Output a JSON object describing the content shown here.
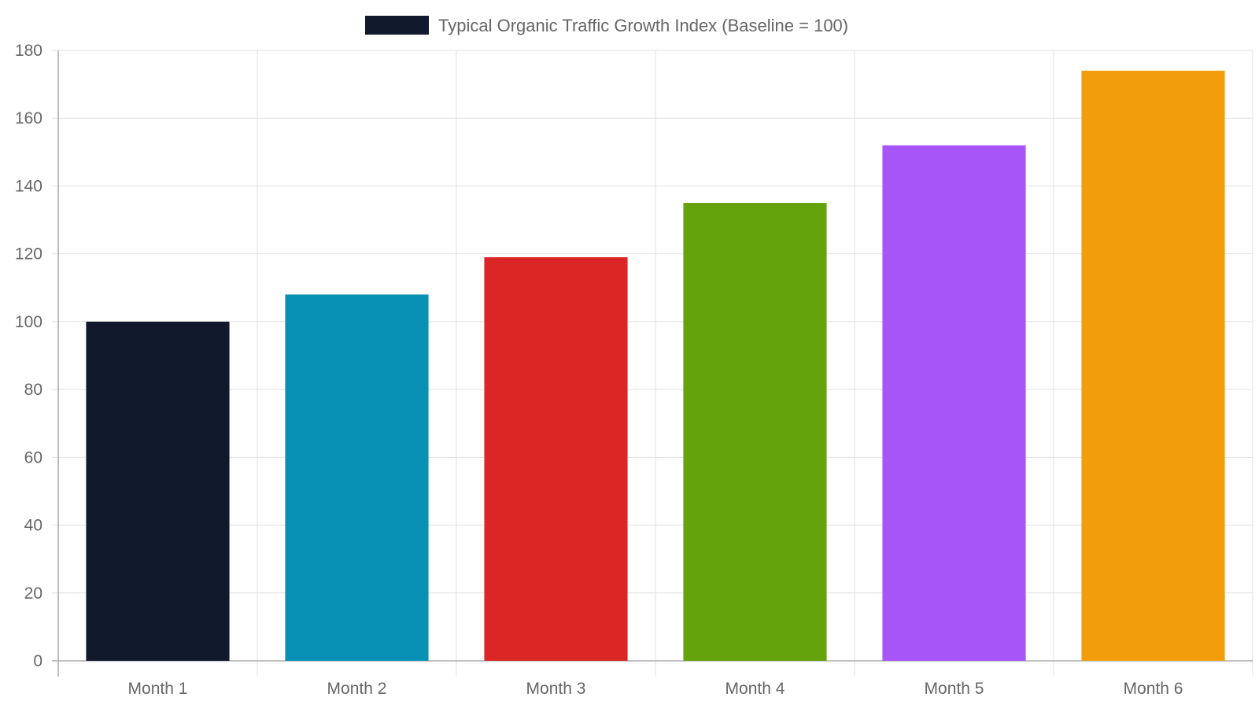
{
  "chart_data": {
    "type": "bar",
    "title": "",
    "xlabel": "",
    "ylabel": "",
    "categories": [
      "Month 1",
      "Month 2",
      "Month 3",
      "Month 4",
      "Month 5",
      "Month 6"
    ],
    "series": [
      {
        "name": "Typical Organic Traffic Growth Index (Baseline = 100)",
        "values": [
          100,
          108,
          119,
          135,
          152,
          174
        ],
        "colors": [
          "#111a2c",
          "#0891b4",
          "#dc2626",
          "#65a30d",
          "#a855f7",
          "#f29e0c"
        ]
      }
    ],
    "ylim": [
      0,
      180
    ],
    "yticks": [
      0,
      20,
      40,
      60,
      80,
      100,
      120,
      140,
      160,
      180
    ],
    "grid": true,
    "legend": "top-center",
    "legend_swatch_color": "#111a2c"
  }
}
